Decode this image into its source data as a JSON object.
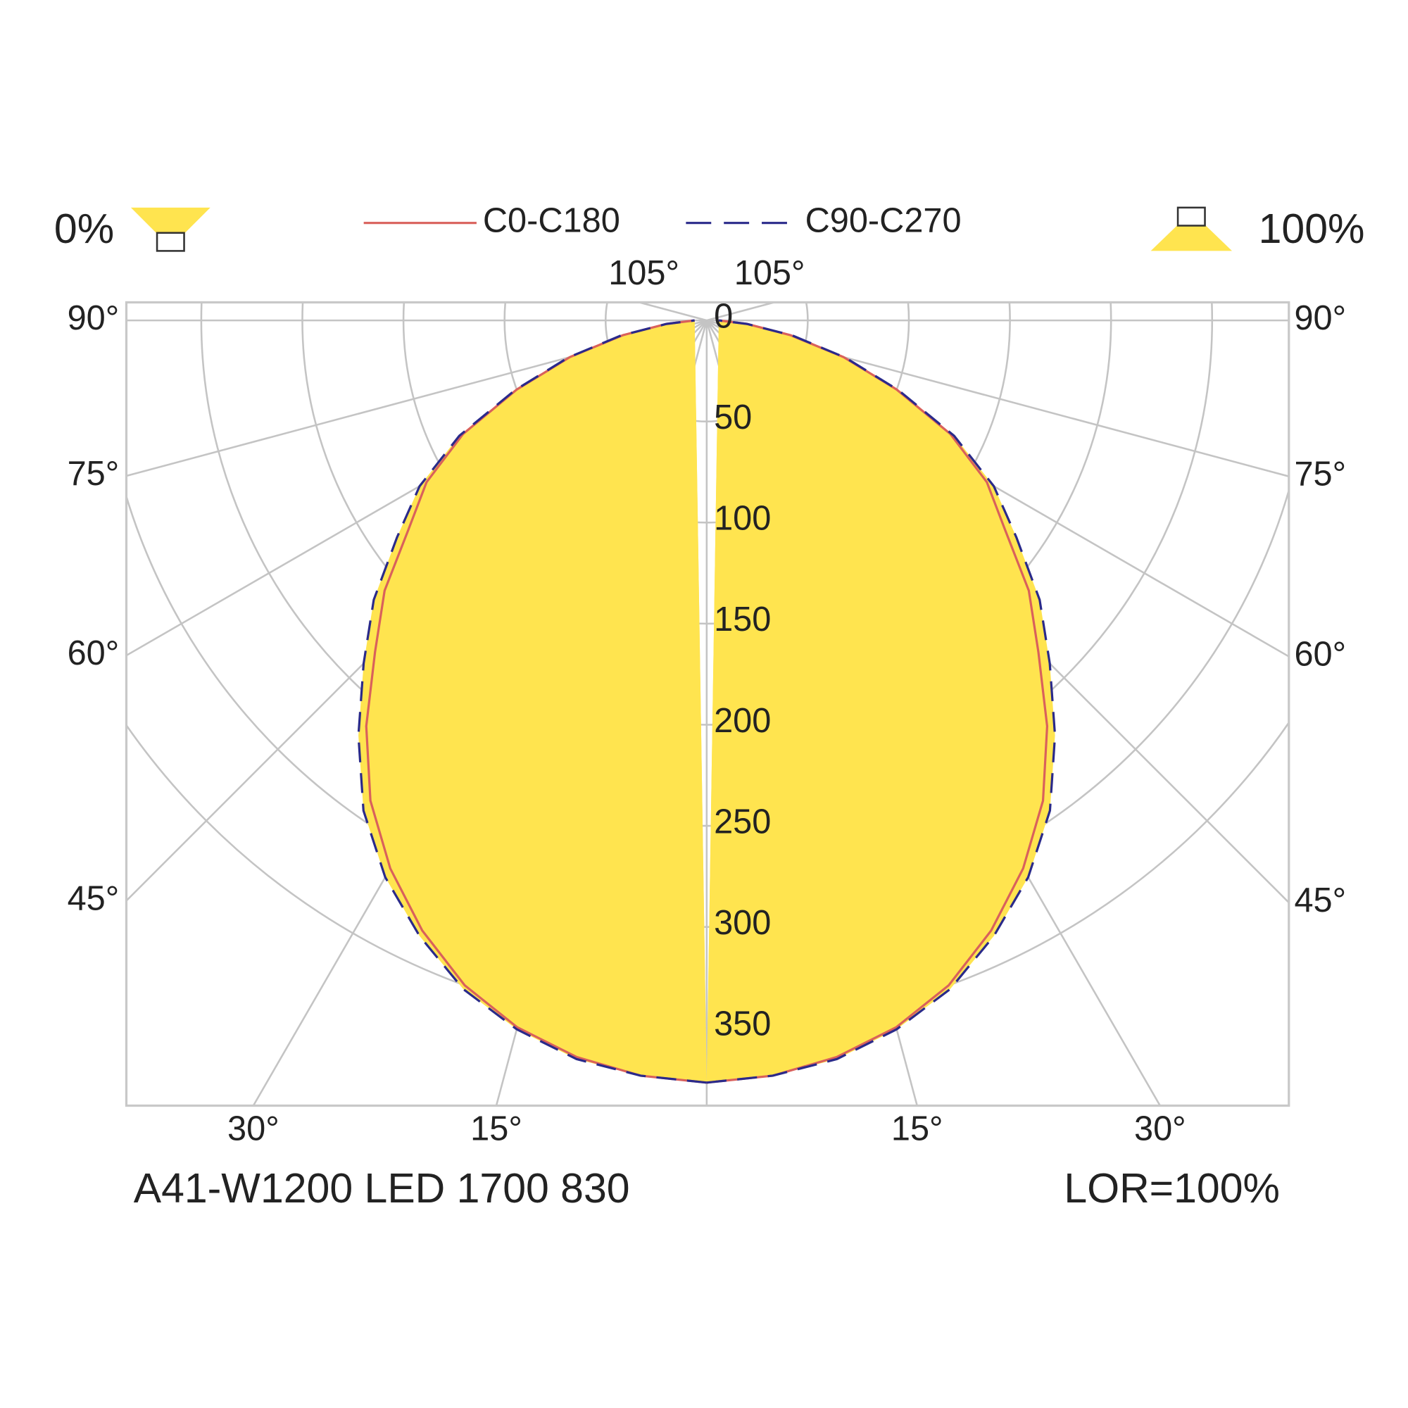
{
  "chart_data": {
    "type": "polar",
    "left_label": "0%",
    "right_label": "100%",
    "footer_left": "A41-W1200 LED 1700 830",
    "footer_right": "LOR=100%",
    "fill_color": "#ffe44f",
    "x": [
      0,
      5,
      10,
      15,
      20,
      25,
      30,
      35,
      40,
      45,
      50,
      55,
      60,
      65,
      70,
      75,
      80,
      85,
      90
    ],
    "series": [
      {
        "name": "C0-C180",
        "color": "#d9615b",
        "dash": false,
        "values": [
          377,
          375,
          370,
          362,
          350,
          333,
          313,
          290,
          262,
          232,
          208,
          180,
          160,
          133,
          100,
          70,
          42,
          20,
          6
        ]
      },
      {
        "name": "C90-C270",
        "color": "#2a2a8a",
        "dash": true,
        "values": [
          377,
          375,
          371,
          363,
          352,
          336,
          318,
          296,
          268,
          240,
          215,
          187,
          164,
          135,
          101,
          71,
          43,
          20,
          6
        ]
      }
    ],
    "rticks": [
      0,
      50,
      100,
      150,
      200,
      250,
      300,
      350
    ],
    "angle_ticks": [
      {
        "value": 15,
        "label": "15°"
      },
      {
        "value": 30,
        "label": "30°"
      },
      {
        "value": 45,
        "label": "45°"
      },
      {
        "value": 60,
        "label": "60°"
      },
      {
        "value": 75,
        "label": "75°"
      },
      {
        "value": 90,
        "label": "90°"
      },
      {
        "value": 105,
        "label": "105°"
      }
    ]
  }
}
